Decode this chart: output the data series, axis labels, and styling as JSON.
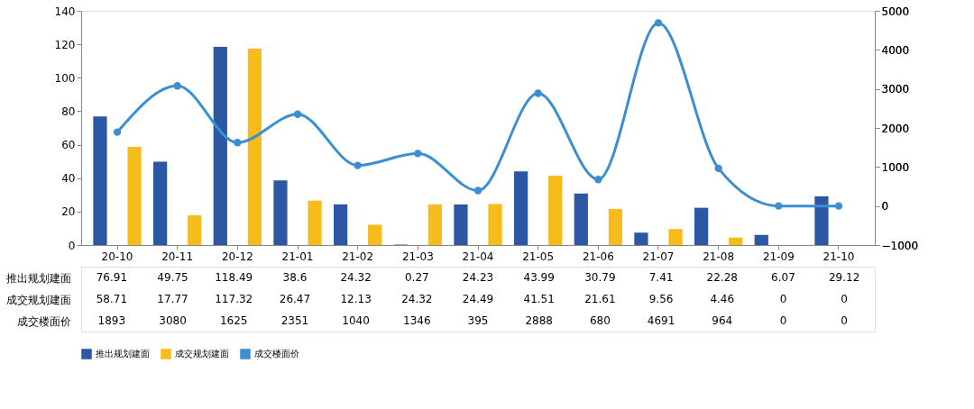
{
  "chart_data": {
    "type": "bar",
    "categories": [
      "20-10",
      "20-11",
      "20-12",
      "21-01",
      "21-02",
      "21-03",
      "21-04",
      "21-05",
      "21-06",
      "21-07",
      "21-08",
      "21-09",
      "21-10"
    ],
    "series": [
      {
        "name": "推出规划建面",
        "color": "#2b57a4",
        "values": [
          76.91,
          49.75,
          118.49,
          38.6,
          24.32,
          0.27,
          24.23,
          43.99,
          30.79,
          7.41,
          22.28,
          6.07,
          29.12
        ]
      },
      {
        "name": "成交规划建面",
        "color": "#f5bc1b",
        "values": [
          58.71,
          17.77,
          117.32,
          26.47,
          12.13,
          24.32,
          24.49,
          41.51,
          21.61,
          9.56,
          4.46,
          0,
          0
        ]
      },
      {
        "name": "成交楼面价",
        "type": "line",
        "axis": "y2",
        "color": "#3b8fd0",
        "values": [
          1893,
          3080,
          1625,
          2351,
          1040,
          1346,
          395,
          2888,
          680,
          4691,
          964,
          0,
          0
        ]
      }
    ],
    "ylim": [
      0,
      140
    ],
    "yticks": [
      0,
      20,
      40,
      60,
      80,
      100,
      120,
      140
    ],
    "y2lim": [
      -1000,
      5000
    ],
    "y2ticks": [
      -1000,
      0,
      1000,
      2000,
      3000,
      4000,
      5000
    ],
    "data_labels": true,
    "grid": false,
    "legend": "bottom",
    "marker": "circle"
  }
}
